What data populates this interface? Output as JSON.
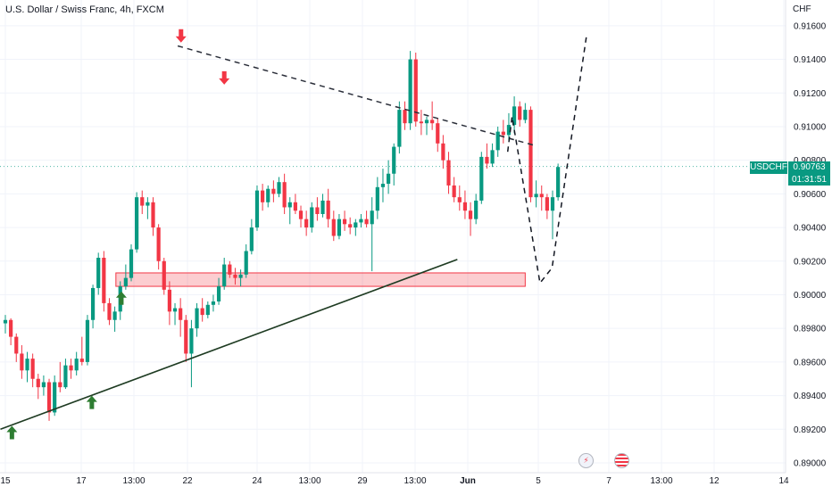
{
  "header": {
    "title": "U.S. Dollar / Swiss Franc, 4h, FXCM"
  },
  "price_axis": {
    "currency": "CHF",
    "ticks": [
      "0.91600",
      "0.91400",
      "0.91200",
      "0.91000",
      "0.90800",
      "0.90600",
      "0.90400",
      "0.90200",
      "0.90000",
      "0.89800",
      "0.89600",
      "0.89400",
      "0.89200",
      "0.89000"
    ]
  },
  "time_axis": {
    "ticks": [
      "15",
      "17",
      "13:00",
      "22",
      "24",
      "13:00",
      "29",
      "13:00",
      "Jun",
      "5",
      "7",
      "13:00",
      "12",
      "14"
    ]
  },
  "price_badge": {
    "symbol": "USDCHF",
    "price": "0.90763",
    "countdown": "01:31:51"
  },
  "events": {
    "lightning": "lightning-icon",
    "us_flag": "us-flag-icon"
  },
  "colors": {
    "up": "#089981",
    "down": "#f23645",
    "zone": "#f23645",
    "trendline": "#1e3b22"
  },
  "chart_data": {
    "type": "candlestick",
    "title": "U.S. Dollar / Swiss Franc, 4h, FXCM",
    "ylim": [
      0.89,
      0.917
    ],
    "y_ticks": [
      0.916,
      0.914,
      0.912,
      0.91,
      0.908,
      0.906,
      0.904,
      0.902,
      0.9,
      0.898,
      0.896,
      0.894,
      0.892,
      0.89
    ],
    "x_ticks": [
      "15",
      "17",
      "13:00",
      "22",
      "24",
      "13:00",
      "29",
      "13:00",
      "Jun",
      "5",
      "7",
      "13:00",
      "12",
      "14"
    ],
    "last_price": 0.90763,
    "ohlc": [
      [
        0.8983,
        0.8988,
        0.8977,
        0.8985
      ],
      [
        0.8985,
        0.8986,
        0.897,
        0.8975
      ],
      [
        0.8975,
        0.8977,
        0.896,
        0.8965
      ],
      [
        0.8965,
        0.897,
        0.895,
        0.8955
      ],
      [
        0.8955,
        0.8966,
        0.8948,
        0.8962
      ],
      [
        0.8962,
        0.8965,
        0.8945,
        0.895
      ],
      [
        0.895,
        0.8953,
        0.8938,
        0.8945
      ],
      [
        0.8945,
        0.8952,
        0.894,
        0.8948
      ],
      [
        0.8948,
        0.895,
        0.8925,
        0.893
      ],
      [
        0.893,
        0.8952,
        0.8928,
        0.8948
      ],
      [
        0.8948,
        0.896,
        0.8942,
        0.8945
      ],
      [
        0.8945,
        0.8962,
        0.8944,
        0.8958
      ],
      [
        0.8958,
        0.8962,
        0.895,
        0.8955
      ],
      [
        0.8955,
        0.8966,
        0.8952,
        0.8962
      ],
      [
        0.8962,
        0.8975,
        0.8958,
        0.896
      ],
      [
        0.896,
        0.8988,
        0.8958,
        0.8985
      ],
      [
        0.8985,
        0.9006,
        0.898,
        0.9004
      ],
      [
        0.9004,
        0.9025,
        0.9,
        0.9022
      ],
      [
        0.9022,
        0.9026,
        0.899,
        0.8995
      ],
      [
        0.8995,
        0.8998,
        0.8982,
        0.8985
      ],
      [
        0.8985,
        0.8993,
        0.8978,
        0.899
      ],
      [
        0.899,
        0.9008,
        0.8985,
        0.9005
      ],
      [
        0.9005,
        0.9018,
        0.9003,
        0.901
      ],
      [
        0.901,
        0.903,
        0.9008,
        0.9027
      ],
      [
        0.9027,
        0.9061,
        0.9025,
        0.9058
      ],
      [
        0.9058,
        0.9062,
        0.9048,
        0.9053
      ],
      [
        0.9053,
        0.9058,
        0.9045,
        0.9055
      ],
      [
        0.9055,
        0.9058,
        0.9035,
        0.904
      ],
      [
        0.904,
        0.9042,
        0.9015,
        0.902
      ],
      [
        0.902,
        0.9022,
        0.9,
        0.9003
      ],
      [
        0.9003,
        0.9008,
        0.8982,
        0.899
      ],
      [
        0.899,
        0.8995,
        0.8982,
        0.8992
      ],
      [
        0.8992,
        0.8998,
        0.8975,
        0.8985
      ],
      [
        0.8985,
        0.8988,
        0.896,
        0.8965
      ],
      [
        0.8965,
        0.8985,
        0.8945,
        0.898
      ],
      [
        0.898,
        0.8995,
        0.8975,
        0.8992
      ],
      [
        0.8992,
        0.8998,
        0.8984,
        0.8988
      ],
      [
        0.8988,
        0.8996,
        0.8986,
        0.8994
      ],
      [
        0.8994,
        0.9,
        0.899,
        0.8996
      ],
      [
        0.8996,
        0.901,
        0.8994,
        0.9005
      ],
      [
        0.9005,
        0.9022,
        0.9003,
        0.9018
      ],
      [
        0.9018,
        0.902,
        0.901,
        0.9012
      ],
      [
        0.9012,
        0.9016,
        0.9006,
        0.901
      ],
      [
        0.901,
        0.9015,
        0.9005,
        0.9012
      ],
      [
        0.9012,
        0.903,
        0.901,
        0.9026
      ],
      [
        0.9026,
        0.9045,
        0.9024,
        0.904
      ],
      [
        0.904,
        0.9065,
        0.9038,
        0.9062
      ],
      [
        0.9062,
        0.9066,
        0.905,
        0.9055
      ],
      [
        0.9055,
        0.9065,
        0.9052,
        0.9063
      ],
      [
        0.9063,
        0.9068,
        0.9055,
        0.906
      ],
      [
        0.906,
        0.907,
        0.9058,
        0.9067
      ],
      [
        0.9067,
        0.9072,
        0.9048,
        0.9052
      ],
      [
        0.9052,
        0.9058,
        0.9042,
        0.9055
      ],
      [
        0.9055,
        0.906,
        0.9048,
        0.905
      ],
      [
        0.905,
        0.9053,
        0.904,
        0.9045
      ],
      [
        0.9045,
        0.905,
        0.9035,
        0.904
      ],
      [
        0.904,
        0.9055,
        0.9037,
        0.9052
      ],
      [
        0.9052,
        0.9058,
        0.9044,
        0.9048
      ],
      [
        0.9048,
        0.906,
        0.9046,
        0.9056
      ],
      [
        0.9056,
        0.9063,
        0.904,
        0.9045
      ],
      [
        0.9045,
        0.905,
        0.9032,
        0.9035
      ],
      [
        0.9035,
        0.9048,
        0.9033,
        0.9045
      ],
      [
        0.9045,
        0.905,
        0.9038,
        0.9042
      ],
      [
        0.9042,
        0.9046,
        0.9036,
        0.904
      ],
      [
        0.904,
        0.9045,
        0.9035,
        0.9043
      ],
      [
        0.9043,
        0.9048,
        0.904,
        0.9045
      ],
      [
        0.9045,
        0.905,
        0.904,
        0.9042
      ],
      [
        0.9042,
        0.9058,
        0.9014,
        0.905
      ],
      [
        0.905,
        0.907,
        0.9045,
        0.9064
      ],
      [
        0.9064,
        0.9075,
        0.9055,
        0.9066
      ],
      [
        0.9066,
        0.908,
        0.906,
        0.9072
      ],
      [
        0.9072,
        0.909,
        0.9065,
        0.9088
      ],
      [
        0.9088,
        0.9115,
        0.9084,
        0.911
      ],
      [
        0.911,
        0.9115,
        0.9098,
        0.9102
      ],
      [
        0.9102,
        0.9145,
        0.9098,
        0.914
      ],
      [
        0.914,
        0.9144,
        0.91,
        0.9103
      ],
      [
        0.9103,
        0.911,
        0.9095,
        0.9102
      ],
      [
        0.9102,
        0.9106,
        0.9095,
        0.9104
      ],
      [
        0.9104,
        0.9115,
        0.9098,
        0.9102
      ],
      [
        0.9102,
        0.9105,
        0.9085,
        0.909
      ],
      [
        0.909,
        0.9095,
        0.9075,
        0.908
      ],
      [
        0.908,
        0.9085,
        0.906,
        0.9065
      ],
      [
        0.9065,
        0.907,
        0.9055,
        0.9058
      ],
      [
        0.9058,
        0.9065,
        0.905,
        0.9055
      ],
      [
        0.9055,
        0.9062,
        0.9045,
        0.905
      ],
      [
        0.905,
        0.9055,
        0.9035,
        0.9045
      ],
      [
        0.9045,
        0.906,
        0.9042,
        0.9056
      ],
      [
        0.9056,
        0.9085,
        0.9054,
        0.9082
      ],
      [
        0.9082,
        0.909,
        0.9075,
        0.9078
      ],
      [
        0.9078,
        0.909,
        0.9076,
        0.9086
      ],
      [
        0.9086,
        0.91,
        0.9082,
        0.9097
      ],
      [
        0.9097,
        0.9104,
        0.909,
        0.9095
      ],
      [
        0.9095,
        0.9108,
        0.9092,
        0.9101
      ],
      [
        0.9101,
        0.9118,
        0.9096,
        0.9112
      ],
      [
        0.9112,
        0.9115,
        0.91,
        0.9104
      ],
      [
        0.9104,
        0.9114,
        0.9102,
        0.911
      ],
      [
        0.911,
        0.9112,
        0.9055,
        0.9058
      ],
      [
        0.9058,
        0.9068,
        0.9052,
        0.906
      ],
      [
        0.906,
        0.9065,
        0.905,
        0.9058
      ],
      [
        0.9058,
        0.906,
        0.9045,
        0.905
      ],
      [
        0.905,
        0.9062,
        0.9033,
        0.9058
      ],
      [
        0.9058,
        0.9078,
        0.9056,
        0.9076
      ]
    ],
    "drawings": {
      "support_line": {
        "from": [
          -0.9,
          0.892
        ],
        "to": [
          82.6,
          0.9021
        ]
      },
      "resistance_line": {
        "from": [
          31.5,
          0.9148
        ],
        "to": [
          96.5,
          0.9089
        ]
      },
      "demand_zone": {
        "x_range": [
          20.2,
          95.0
        ],
        "y_range": [
          0.9005,
          0.9013
        ]
      },
      "projection_path": [
        [
          91.8,
          0.9085
        ],
        [
          92.6,
          0.9106
        ],
        [
          97.7,
          0.9007
        ],
        [
          99.9,
          0.9016
        ],
        [
          106.2,
          0.9154
        ]
      ],
      "up_arrows": [
        [
          1.2,
          0.8922
        ],
        [
          15.8,
          0.894
        ],
        [
          21.2,
          0.9002
        ]
      ],
      "down_arrows": [
        [
          32.1,
          0.915
        ],
        [
          40.0,
          0.9125
        ]
      ]
    }
  }
}
